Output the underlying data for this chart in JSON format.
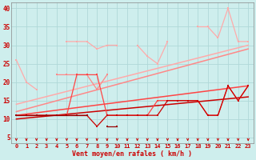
{
  "x": [
    0,
    1,
    2,
    3,
    4,
    5,
    6,
    7,
    8,
    9,
    10,
    11,
    12,
    13,
    14,
    15,
    16,
    17,
    18,
    19,
    20,
    21,
    22,
    23
  ],
  "series1_light_pink": [
    26,
    20,
    18,
    null,
    null,
    null,
    null,
    null,
    null,
    null,
    null,
    null,
    null,
    null,
    null,
    null,
    null,
    null,
    null,
    null,
    null,
    null,
    null,
    null
  ],
  "series2_light_pink": [
    null,
    null,
    null,
    null,
    null,
    31,
    31,
    31,
    29,
    30,
    30,
    null,
    30,
    27,
    25,
    31,
    null,
    null,
    35,
    35,
    32,
    40,
    31,
    31
  ],
  "series3_med_pink": [
    null,
    null,
    null,
    null,
    22,
    22,
    22,
    22,
    18,
    22,
    null,
    null,
    null,
    null,
    null,
    null,
    null,
    null,
    null,
    null,
    null,
    null,
    null,
    null
  ],
  "series4_red": [
    11,
    11,
    11,
    11,
    11,
    11,
    22,
    22,
    22,
    11,
    11,
    11,
    11,
    11,
    15,
    15,
    15,
    15,
    15,
    11,
    11,
    19,
    15,
    19
  ],
  "series5_dark_red": [
    11,
    11,
    11,
    11,
    11,
    11,
    11,
    11,
    8,
    11,
    11,
    11,
    11,
    11,
    11,
    15,
    15,
    15,
    15,
    11,
    11,
    19,
    15,
    19
  ],
  "series6_dark_red2": [
    11,
    11,
    11,
    11,
    11,
    11,
    11,
    11,
    null,
    null,
    null,
    null,
    null,
    null,
    null,
    null,
    null,
    null,
    null,
    null,
    null,
    null,
    null,
    null
  ],
  "trend1_lp": [
    14,
    30
  ],
  "trend2_lp": [
    12,
    29
  ],
  "trend3_r": [
    11,
    19
  ],
  "trend4_dr": [
    10,
    16
  ],
  "yticks": [
    5,
    10,
    15,
    20,
    25,
    30,
    35,
    40
  ],
  "xticks": [
    0,
    1,
    2,
    3,
    4,
    5,
    6,
    7,
    8,
    9,
    10,
    11,
    12,
    13,
    14,
    15,
    16,
    17,
    18,
    19,
    20,
    21,
    22,
    23
  ],
  "xlabel": "Vent moyen/en rafales ( km/h )",
  "bg": "#ceeeed",
  "grid_color": "#b0d8d8",
  "c1": "#ffaaaa",
  "c2": "#ff8888",
  "c3": "#ff4444",
  "c4": "#cc0000",
  "c5": "#990000"
}
